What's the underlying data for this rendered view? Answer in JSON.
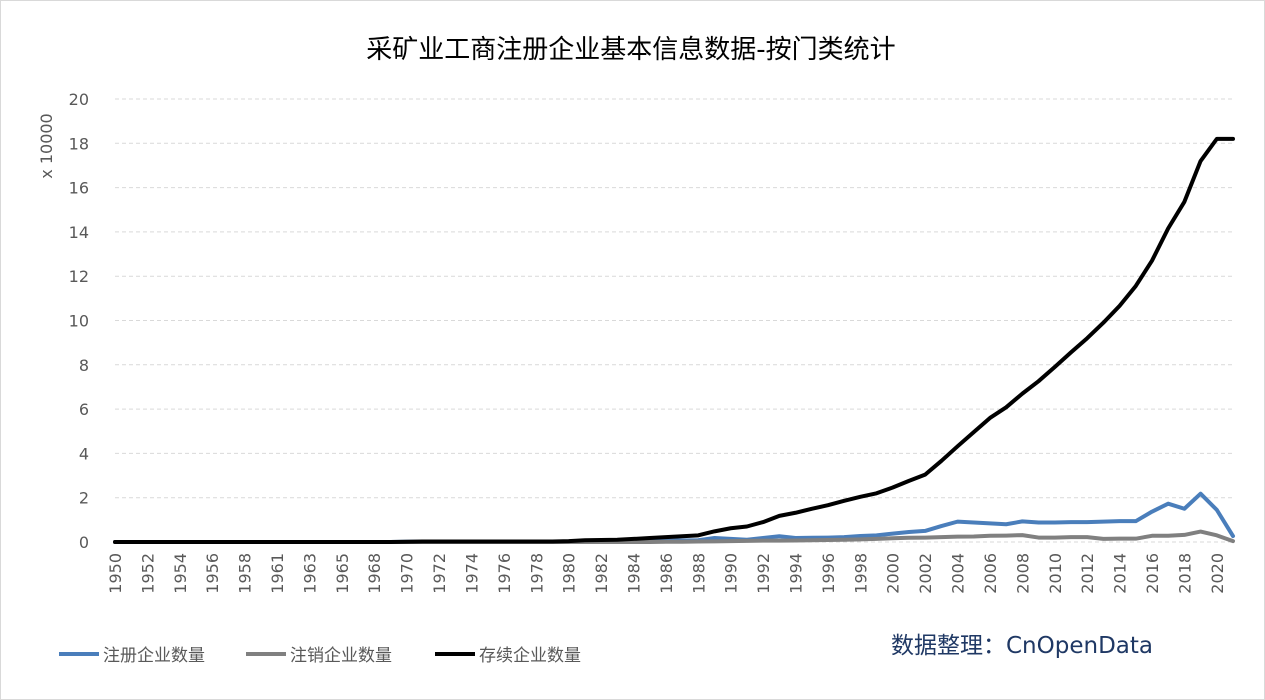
{
  "chart_data": {
    "type": "line",
    "title": "采矿业工商注册企业基本信息数据-按门类统计",
    "ylabel": "x 10000",
    "xlabel": "",
    "ylim": [
      0,
      20
    ],
    "yticks": [
      0,
      2,
      4,
      6,
      8,
      10,
      12,
      14,
      16,
      18,
      20
    ],
    "grid": true,
    "legend_position": "bottom-left",
    "x": [
      "1950",
      "1951",
      "1952",
      "1953",
      "1954",
      "1955",
      "1956",
      "1957",
      "1958",
      "1959",
      "1961",
      "1962",
      "1963",
      "1964",
      "1965",
      "1966",
      "1968",
      "1969",
      "1970",
      "1971",
      "1972",
      "1973",
      "1974",
      "1975",
      "1976",
      "1977",
      "1978",
      "1979",
      "1980",
      "1981",
      "1982",
      "1983",
      "1984",
      "1985",
      "1986",
      "1987",
      "1988",
      "1989",
      "1990",
      "1991",
      "1992",
      "1993",
      "1994",
      "1995",
      "1996",
      "1997",
      "1998",
      "1999",
      "2000",
      "2001",
      "2002",
      "2003",
      "2004",
      "2005",
      "2006",
      "2007",
      "2008",
      "2009",
      "2010",
      "2011",
      "2012",
      "2013",
      "2014",
      "2015",
      "2016",
      "2017",
      "2018",
      "2019",
      "2020",
      "2021"
    ],
    "x_tick_labels": [
      "1950",
      "1952",
      "1954",
      "1956",
      "1958",
      "1961",
      "1963",
      "1965",
      "1968",
      "1970",
      "1972",
      "1974",
      "1976",
      "1978",
      "1980",
      "1982",
      "1984",
      "1986",
      "1988",
      "1990",
      "1992",
      "1994",
      "1996",
      "1998",
      "2000",
      "2002",
      "2004",
      "2006",
      "2008",
      "2010",
      "2012",
      "2014",
      "2016",
      "2018",
      "2020"
    ],
    "series": [
      {
        "name": "注册企业数量",
        "color": "#4a7ebb",
        "values": [
          0,
          0,
          0,
          0,
          0,
          0,
          0,
          0,
          0,
          0,
          0,
          0,
          0,
          0,
          0,
          0,
          0,
          0,
          0.01,
          0.01,
          0.01,
          0.01,
          0.01,
          0.01,
          0.01,
          0.01,
          0.01,
          0.01,
          0.02,
          0.02,
          0.03,
          0.03,
          0.04,
          0.05,
          0.06,
          0.07,
          0.08,
          0.18,
          0.14,
          0.1,
          0.18,
          0.26,
          0.18,
          0.19,
          0.2,
          0.22,
          0.27,
          0.3,
          0.38,
          0.45,
          0.5,
          0.72,
          0.92,
          0.88,
          0.84,
          0.8,
          0.93,
          0.88,
          0.88,
          0.9,
          0.9,
          0.92,
          0.94,
          0.94,
          1.37,
          1.73,
          1.5,
          2.18,
          1.45,
          0.27
        ]
      },
      {
        "name": "注销企业数量",
        "color": "#808080",
        "values": [
          0,
          0,
          0,
          0,
          0,
          0,
          0,
          0,
          0,
          0,
          0,
          0,
          0,
          0,
          0,
          0,
          0,
          0,
          0,
          0,
          0,
          0,
          0,
          0,
          0,
          0,
          0,
          0,
          0,
          0,
          0,
          0,
          0,
          0,
          0.01,
          0.01,
          0.02,
          0.03,
          0.04,
          0.05,
          0.06,
          0.06,
          0.07,
          0.08,
          0.09,
          0.1,
          0.12,
          0.14,
          0.17,
          0.19,
          0.2,
          0.22,
          0.24,
          0.25,
          0.28,
          0.29,
          0.31,
          0.2,
          0.2,
          0.22,
          0.22,
          0.14,
          0.15,
          0.15,
          0.28,
          0.28,
          0.32,
          0.47,
          0.3,
          0.04
        ]
      },
      {
        "name": "存续企业数量",
        "color": "#000000",
        "values": [
          0,
          0,
          0,
          0,
          0,
          0,
          0,
          0,
          0,
          0,
          0,
          0,
          0,
          0,
          0,
          0,
          0,
          0,
          0.01,
          0.02,
          0.02,
          0.02,
          0.02,
          0.02,
          0.02,
          0.02,
          0.02,
          0.02,
          0.04,
          0.08,
          0.09,
          0.1,
          0.14,
          0.18,
          0.22,
          0.26,
          0.3,
          0.48,
          0.62,
          0.7,
          0.9,
          1.18,
          1.32,
          1.5,
          1.66,
          1.86,
          2.04,
          2.2,
          2.46,
          2.76,
          3.04,
          3.66,
          4.32,
          4.96,
          5.6,
          6.08,
          6.7,
          7.26,
          7.9,
          8.56,
          9.2,
          9.9,
          10.66,
          11.56,
          12.7,
          14.16,
          15.36,
          17.2,
          18.2,
          18.2
        ]
      }
    ],
    "source_note": "数据整理：CnOpenData"
  }
}
